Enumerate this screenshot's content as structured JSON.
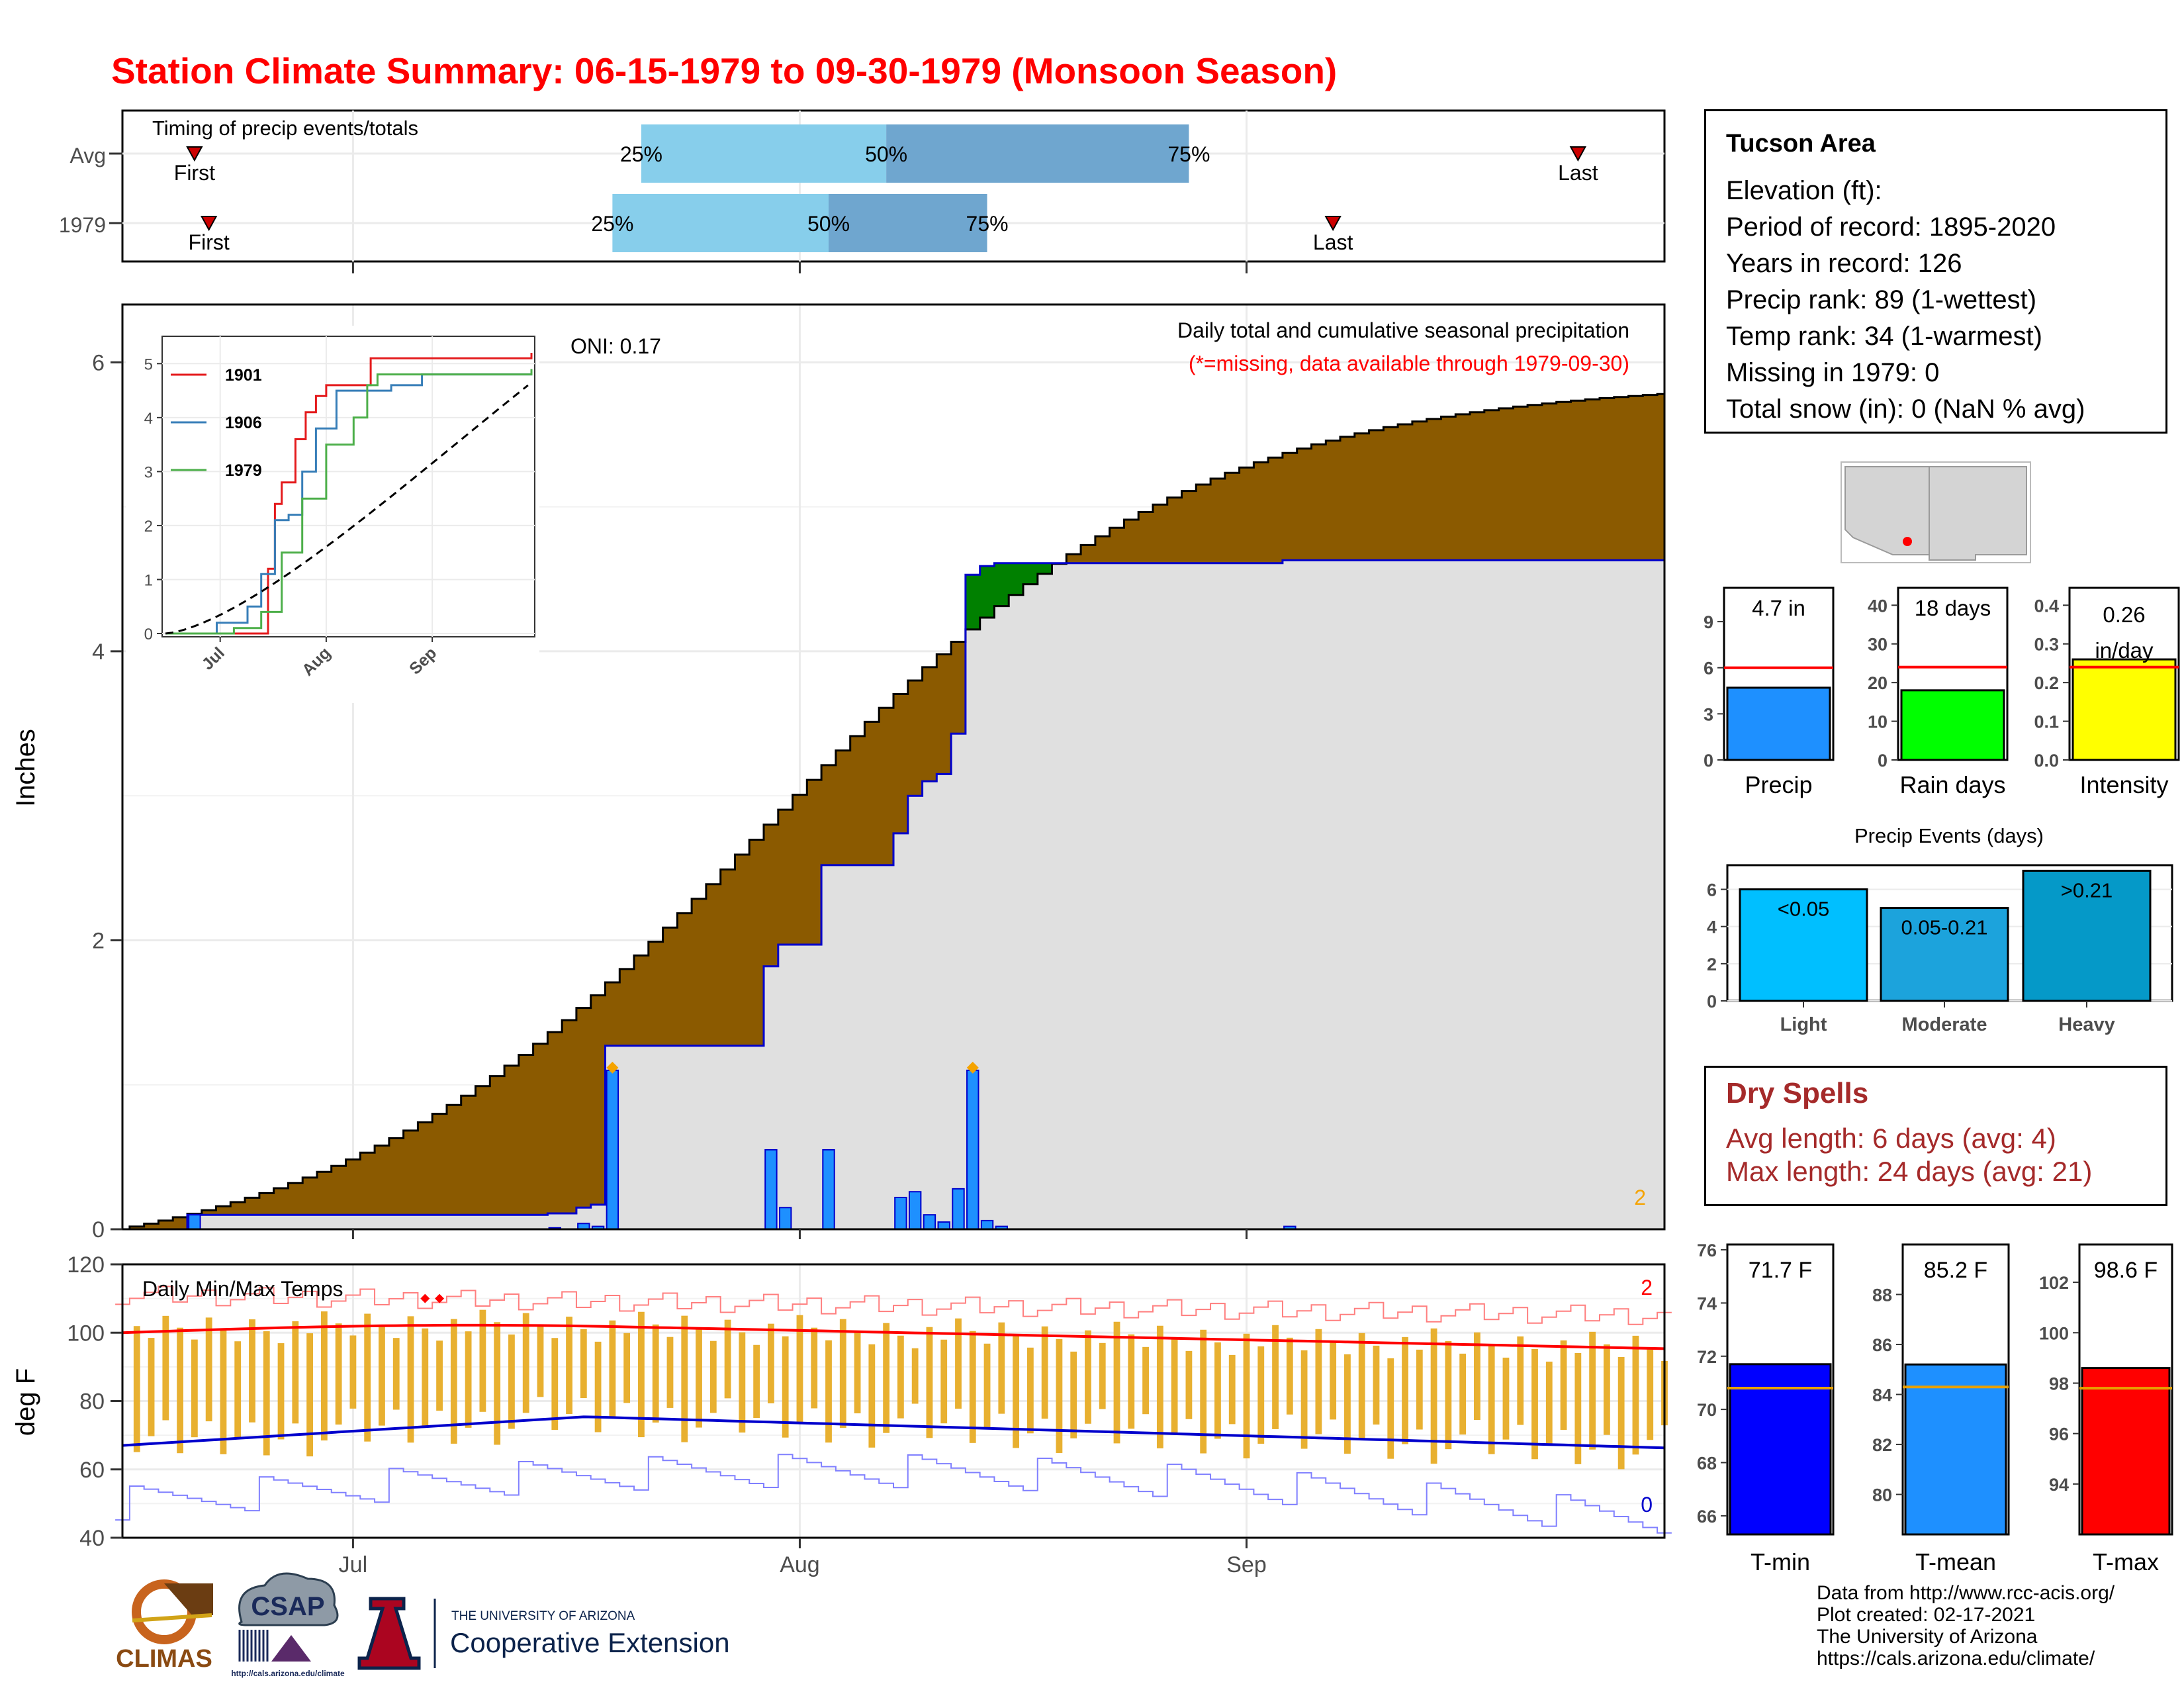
{
  "title": "Station Climate Summary: 06-15-1979 to 09-30-1979 (Monsoon Season)",
  "timing": {
    "label": "Timing of precip events/totals",
    "rows": [
      {
        "name": "Avg",
        "first_day": 5,
        "last_day": 101,
        "q25_day": 36,
        "q50_day": 53,
        "q75_day": 74,
        "q25": "25%",
        "q50": "50%",
        "q75": "75%",
        "first": "First",
        "last": "Last"
      },
      {
        "name": "1979",
        "first_day": 6,
        "last_day": 84,
        "q25_day": 34,
        "q50_day": 49,
        "q75_day": 60,
        "q25": "25%",
        "q50": "50%",
        "q75": "75%",
        "first": "First",
        "last": "Last"
      }
    ],
    "colors": {
      "light": "#87ceeb",
      "dark": "#6fa6cf",
      "marker": "#cc0000"
    }
  },
  "main_chart": {
    "ylabel": "Inches",
    "ylim": [
      0,
      6.4
    ],
    "yticks": [
      "0",
      "2",
      "4",
      "6"
    ],
    "xticks": [
      {
        "day": 16,
        "label": "Jul"
      },
      {
        "day": 47,
        "label": "Aug"
      },
      {
        "day": 78,
        "label": "Sep"
      }
    ],
    "oni": "ONI: 0.17",
    "subtitle": "Daily total and cumulative seasonal precipitation",
    "note": "(*=missing, data available through 1979-09-30)",
    "corner_number": "2",
    "colors": {
      "above": "#008000",
      "below": "#8b5a00",
      "fill": "#e0e0e0",
      "obs_line": "#0000cc",
      "bar": "#1e90ff",
      "marker": "#f5a300"
    }
  },
  "inset": {
    "yticks": [
      "0",
      "1",
      "2",
      "3",
      "4",
      "5"
    ],
    "xticks": [
      "Jul",
      "Aug",
      "Sep"
    ],
    "legend": [
      {
        "name": "1901",
        "color": "#e41a1c"
      },
      {
        "name": "1906",
        "color": "#377eb8"
      },
      {
        "name": "1979",
        "color": "#4daf4a"
      }
    ]
  },
  "temp_chart": {
    "label": "Daily Min/Max Temps",
    "ylabel": "deg F",
    "ylim": [
      40,
      120
    ],
    "yticks": [
      "40",
      "60",
      "80",
      "100",
      "120"
    ],
    "xticks": [
      "Jul",
      "Aug",
      "Sep"
    ],
    "record_high_count": "2",
    "record_low_count": "0",
    "colors": {
      "bar": "#e8b030",
      "max_avg": "#ff0000",
      "min_avg": "#0000cc",
      "max_rec": "#ff7f7f",
      "min_rec": "#8080ff"
    }
  },
  "station": {
    "title": "Tucson Area",
    "lines": [
      "Elevation (ft):",
      "Period of record: 1895-2020",
      "Years in record: 126",
      "Precip rank: 89 (1-wettest)",
      "Temp rank: 34 (1-warmest)",
      "Missing in 1979: 0",
      "Total snow (in): 0 (NaN % avg)"
    ]
  },
  "mini_bars": [
    {
      "label": "Precip",
      "value": 4.7,
      "avg": 6.0,
      "ymax": 11.2,
      "ticks": [
        "0",
        "3",
        "6",
        "9"
      ],
      "tick_vals": [
        0,
        3,
        6,
        9
      ],
      "text1": "4.7 in",
      "text2": "",
      "color": "#1e90ff"
    },
    {
      "label": "Rain days",
      "value": 18,
      "avg": 24,
      "ymax": 44.5,
      "ticks": [
        "0",
        "10",
        "20",
        "30",
        "40"
      ],
      "tick_vals": [
        0,
        10,
        20,
        30,
        40
      ],
      "text1": "18 days",
      "text2": "",
      "color": "#00ff00"
    },
    {
      "label": "Intensity",
      "value": 0.26,
      "avg": 0.24,
      "ymax": 0.445,
      "ticks": [
        "0.0",
        "0.1",
        "0.2",
        "0.3",
        "0.4"
      ],
      "tick_vals": [
        0,
        0.1,
        0.2,
        0.3,
        0.4
      ],
      "text1": "0.26",
      "text2": "in/day",
      "color": "#ffff00"
    }
  ],
  "events": {
    "title": "Precip Events (days)",
    "yticks": [
      "0",
      "2",
      "4",
      "6"
    ],
    "categories": [
      "Light",
      "Moderate",
      "Heavy"
    ],
    "values": [
      6,
      5,
      7
    ],
    "labels": [
      "<0.05",
      "0.05-0.21",
      ">0.21"
    ],
    "colors": [
      "#00bfff",
      "#1ca3dc",
      "#0599c8"
    ]
  },
  "dry_spells": {
    "title": "Dry Spells",
    "avg_line": "Avg length: 6 days (avg: 4)",
    "max_line": "Max length: 24 days (avg: 21)"
  },
  "temp_bars": [
    {
      "label": "T-min",
      "value": 71.7,
      "avg": 70.8,
      "ymin": 65.3,
      "ymax": 76.2,
      "ticks": [
        "66",
        "68",
        "70",
        "72",
        "74",
        "76"
      ],
      "tick_vals": [
        66,
        68,
        70,
        72,
        74,
        76
      ],
      "text": "71.7 F",
      "color": "#0000ff"
    },
    {
      "label": "T-mean",
      "value": 85.2,
      "avg": 84.3,
      "ymin": 78.4,
      "ymax": 90.0,
      "ticks": [
        "80",
        "82",
        "84",
        "86",
        "88"
      ],
      "tick_vals": [
        80,
        82,
        84,
        86,
        88
      ],
      "text": "85.2 F",
      "color": "#1e90ff"
    },
    {
      "label": "T-max",
      "value": 98.6,
      "avg": 97.8,
      "ymin": 92.0,
      "ymax": 103.5,
      "ticks": [
        "94",
        "96",
        "98",
        "100",
        "102"
      ],
      "tick_vals": [
        94,
        96,
        98,
        100,
        102
      ],
      "text": "98.6 F",
      "color": "#ff0000"
    }
  ],
  "logos": {
    "climas": "CLIMAS",
    "csap": "CSAP",
    "csap_url": "http://cals.arizona.edu/climate",
    "ua_line1": "THE UNIVERSITY OF ARIZONA",
    "ua_line2": "Cooperative Extension"
  },
  "footer": [
    "Data from http://www.rcc-acis.org/",
    "Plot created: 02-17-2021",
    "The University of Arizona",
    "https://cals.arizona.edu/climate/"
  ]
}
